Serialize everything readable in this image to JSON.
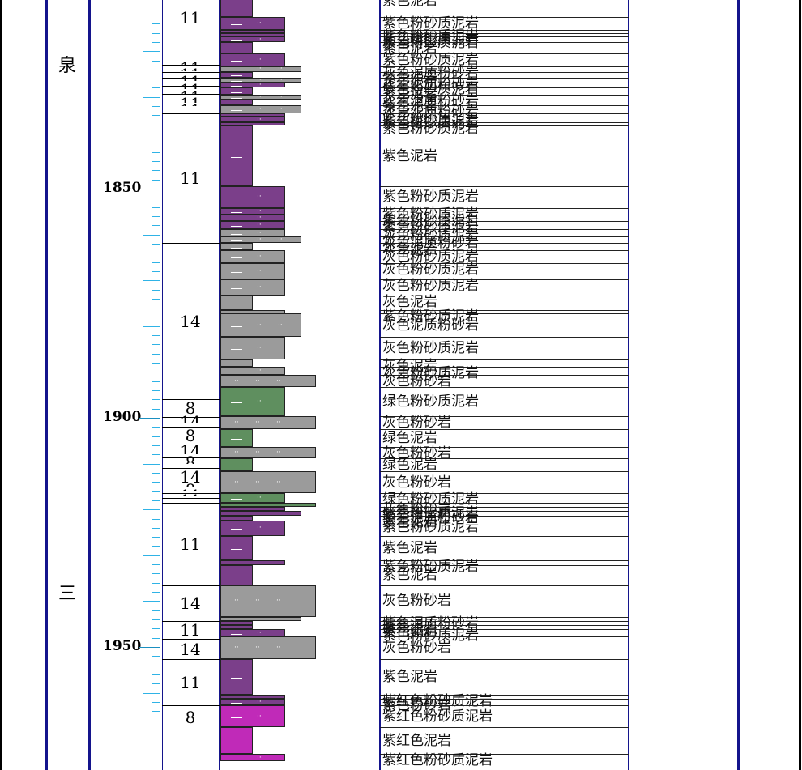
{
  "formation": {
    "top_char": "泉",
    "bottom_char": "三"
  },
  "depth_labels": [
    "1850",
    "1900",
    "1950"
  ],
  "depth_axis": {
    "min": 1800,
    "max": 1968,
    "major_step": 50,
    "minor_step": 2
  },
  "grain_groups": [
    {
      "value": "11",
      "top": 1802.6,
      "bottom": 1822.9
    },
    {
      "value": "11",
      "top": 1822.9,
      "bottom": 1824.5
    },
    {
      "value": "11",
      "top": 1824.5,
      "bottom": 1825.8
    },
    {
      "value": "11",
      "top": 1825.8,
      "bottom": 1827.6
    },
    {
      "value": "11",
      "top": 1827.6,
      "bottom": 1829.3
    },
    {
      "value": "11",
      "top": 1829.3,
      "bottom": 1830.6
    },
    {
      "value": "11",
      "top": 1830.6,
      "bottom": 1832.4
    },
    {
      "value": "11",
      "top": 1832.4,
      "bottom": 1833.5
    },
    {
      "value": "11",
      "top": 1833.5,
      "bottom": 1861.8
    },
    {
      "value": "14",
      "top": 1861.8,
      "bottom": 1896.0
    },
    {
      "value": "8",
      "top": 1896.0,
      "bottom": 1899.8
    },
    {
      "value": "14",
      "top": 1899.8,
      "bottom": 1902.0
    },
    {
      "value": "8",
      "top": 1902.0,
      "bottom": 1905.9
    },
    {
      "value": "14",
      "top": 1905.9,
      "bottom": 1908.6
    },
    {
      "value": "8",
      "top": 1908.6,
      "bottom": 1910.9
    },
    {
      "value": "14",
      "top": 1910.9,
      "bottom": 1915.0
    },
    {
      "value": "8",
      "top": 1915.0,
      "bottom": 1916.5
    },
    {
      "value": "11",
      "top": 1916.5,
      "bottom": 1917.5
    },
    {
      "value": "11",
      "top": 1917.5,
      "bottom": 1918.6
    },
    {
      "value": "11",
      "top": 1918.6,
      "bottom": 1936.5
    },
    {
      "value": "14",
      "top": 1936.5,
      "bottom": 1944.4
    },
    {
      "value": "11",
      "top": 1944.4,
      "bottom": 1948.2
    },
    {
      "value": "14",
      "top": 1948.2,
      "bottom": 1952.7
    },
    {
      "value": "11",
      "top": 1952.7,
      "bottom": 1962.8
    },
    {
      "value": "8",
      "top": 1962.8,
      "bottom": 1968.0
    }
  ],
  "beds": [
    {
      "top": 1800.0,
      "bottom": 1801.0,
      "color": "#7b3f8a",
      "w": 80,
      "pat": "silt",
      "label": "紫色粉砂质泥岩"
    },
    {
      "top": 1801.0,
      "bottom": 1805.0,
      "color": "#7b3f8a",
      "w": 100,
      "pat": "muddy",
      "label": "紫色泥质粉砂岩"
    },
    {
      "top": 1805.0,
      "bottom": 1805.6,
      "color": "#7b3f8a",
      "w": 118,
      "pat": "sand",
      "label": "紫色粉砂岩"
    },
    {
      "top": 1805.6,
      "bottom": 1812.5,
      "color": "#7b3f8a",
      "w": 40,
      "pat": "mud",
      "label": "紫色泥岩"
    },
    {
      "top": 1812.5,
      "bottom": 1815.3,
      "color": "#7b3f8a",
      "w": 80,
      "pat": "silt",
      "label": "紫色粉砂质泥岩"
    },
    {
      "top": 1815.3,
      "bottom": 1816.0,
      "color": "#7b3f8a",
      "w": 80,
      "pat": "silt",
      "label": "紫色粉砂质泥岩"
    },
    {
      "top": 1816.0,
      "bottom": 1816.8,
      "color": "#7b3f8a",
      "w": 80,
      "pat": "silt",
      "label": "紫色粉砂质泥岩"
    },
    {
      "top": 1816.8,
      "bottom": 1818.1,
      "color": "#7b3f8a",
      "w": 80,
      "pat": "silt",
      "label": "紫色粉砂质泥岩"
    },
    {
      "top": 1818.1,
      "bottom": 1820.5,
      "color": "#7b3f8a",
      "w": 40,
      "pat": "mud",
      "label": "紫色泥岩"
    },
    {
      "top": 1820.5,
      "bottom": 1823.3,
      "color": "#7b3f8a",
      "w": 80,
      "pat": "silt",
      "label": "紫色粉砂质泥岩"
    },
    {
      "top": 1823.3,
      "bottom": 1824.5,
      "color": "#9b9b9b",
      "w": 100,
      "pat": "muddy",
      "label": "灰色泥质粉砂岩"
    },
    {
      "top": 1824.5,
      "bottom": 1825.8,
      "color": "#7b3f8a",
      "w": 40,
      "pat": "mud",
      "label": "紫色泥岩"
    },
    {
      "top": 1825.8,
      "bottom": 1826.9,
      "color": "#9b9b9b",
      "w": 100,
      "pat": "muddy",
      "label": "灰色泥质粉砂岩"
    },
    {
      "top": 1826.9,
      "bottom": 1828.0,
      "color": "#7b3f8a",
      "w": 80,
      "pat": "silt",
      "label": "紫色粉砂质泥岩"
    },
    {
      "top": 1828.0,
      "bottom": 1829.5,
      "color": "#7b3f8a",
      "w": 40,
      "pat": "mud",
      "label": "紫色泥岩"
    },
    {
      "top": 1829.5,
      "bottom": 1830.6,
      "color": "#9b9b9b",
      "w": 100,
      "pat": "muddy",
      "label": "灰色泥质粉砂岩"
    },
    {
      "top": 1830.6,
      "bottom": 1831.8,
      "color": "#7b3f8a",
      "w": 40,
      "pat": "mud",
      "label": "紫色泥岩"
    },
    {
      "top": 1831.8,
      "bottom": 1833.5,
      "color": "#9b9b9b",
      "w": 100,
      "pat": "muddy",
      "label": "灰色泥质粉砂岩"
    },
    {
      "top": 1833.5,
      "bottom": 1834.3,
      "color": "#7b3f8a",
      "w": 80,
      "pat": "silt",
      "label": "紫色粉砂质泥岩"
    },
    {
      "top": 1834.3,
      "bottom": 1835.5,
      "color": "#7b3f8a",
      "w": 80,
      "pat": "silt",
      "label": "紫色粉砂质泥岩"
    },
    {
      "top": 1835.5,
      "bottom": 1836.2,
      "color": "#7b3f8a",
      "w": 80,
      "pat": "silt",
      "label": "紫色粉砂质泥岩"
    },
    {
      "top": 1836.2,
      "bottom": 1849.5,
      "color": "#7b3f8a",
      "w": 40,
      "pat": "mud",
      "label": "紫色泥岩"
    },
    {
      "top": 1849.5,
      "bottom": 1854.2,
      "color": "#7b3f8a",
      "w": 80,
      "pat": "silt",
      "label": "紫色粉砂质泥岩"
    },
    {
      "top": 1854.2,
      "bottom": 1855.6,
      "color": "#7b3f8a",
      "w": 80,
      "pat": "silt",
      "label": "紫色粉砂质泥岩"
    },
    {
      "top": 1855.6,
      "bottom": 1857.0,
      "color": "#7b3f8a",
      "w": 80,
      "pat": "silt",
      "label": "紫色粉砂质泥岩"
    },
    {
      "top": 1857.0,
      "bottom": 1858.8,
      "color": "#7b3f8a",
      "w": 80,
      "pat": "silt",
      "label": "紫色粉砂质泥岩"
    },
    {
      "top": 1858.8,
      "bottom": 1860.5,
      "color": "#9b9b9b",
      "w": 80,
      "pat": "silt",
      "label": "灰色粉砂质泥岩"
    },
    {
      "top": 1860.5,
      "bottom": 1861.8,
      "color": "#9b9b9b",
      "w": 100,
      "pat": "muddy",
      "label": "灰色泥质粉砂岩"
    },
    {
      "top": 1861.8,
      "bottom": 1863.5,
      "color": "#9b9b9b",
      "w": 40,
      "pat": "mud",
      "label": "灰色泥岩"
    },
    {
      "top": 1863.5,
      "bottom": 1866.3,
      "color": "#9b9b9b",
      "w": 80,
      "pat": "silt",
      "label": "灰色粉砂质泥岩"
    },
    {
      "top": 1866.3,
      "bottom": 1869.8,
      "color": "#9b9b9b",
      "w": 80,
      "pat": "silt",
      "label": "灰色粉砂质泥岩"
    },
    {
      "top": 1869.8,
      "bottom": 1873.3,
      "color": "#9b9b9b",
      "w": 80,
      "pat": "silt",
      "label": "灰色粉砂质泥岩"
    },
    {
      "top": 1873.3,
      "bottom": 1876.5,
      "color": "#9b9b9b",
      "w": 40,
      "pat": "mud",
      "label": "灰色泥岩"
    },
    {
      "top": 1876.5,
      "bottom": 1877.2,
      "color": "#9b9b9b",
      "w": 80,
      "pat": "silt",
      "label": "紫色粉砂质泥岩"
    },
    {
      "top": 1877.2,
      "bottom": 1882.4,
      "color": "#9b9b9b",
      "w": 100,
      "pat": "muddy",
      "label": "灰色泥质粉砂岩"
    },
    {
      "top": 1882.4,
      "bottom": 1887.2,
      "color": "#9b9b9b",
      "w": 80,
      "pat": "silt",
      "label": "灰色粉砂质泥岩"
    },
    {
      "top": 1887.2,
      "bottom": 1888.8,
      "color": "#9b9b9b",
      "w": 40,
      "pat": "mud",
      "label": "灰色泥岩"
    },
    {
      "top": 1888.8,
      "bottom": 1890.7,
      "color": "#9b9b9b",
      "w": 80,
      "pat": "silt",
      "label": "灰色粉砂质泥岩"
    },
    {
      "top": 1890.7,
      "bottom": 1893.3,
      "color": "#9b9b9b",
      "w": 118,
      "pat": "sand",
      "label": "灰色粉砂岩"
    },
    {
      "top": 1893.3,
      "bottom": 1899.6,
      "color": "#5f8f5f",
      "w": 80,
      "pat": "silt",
      "label": "绿色粉砂质泥岩"
    },
    {
      "top": 1899.6,
      "bottom": 1902.5,
      "color": "#9b9b9b",
      "w": 118,
      "pat": "sand",
      "label": "灰色粉砂岩"
    },
    {
      "top": 1902.5,
      "bottom": 1906.3,
      "color": "#5f8f5f",
      "w": 40,
      "pat": "mud",
      "label": "绿色泥岩"
    },
    {
      "top": 1906.3,
      "bottom": 1908.8,
      "color": "#9b9b9b",
      "w": 118,
      "pat": "sand",
      "label": "灰色粉砂岩"
    },
    {
      "top": 1908.8,
      "bottom": 1911.7,
      "color": "#5f8f5f",
      "w": 40,
      "pat": "mud",
      "label": "绿色泥岩"
    },
    {
      "top": 1911.7,
      "bottom": 1916.5,
      "color": "#9b9b9b",
      "w": 118,
      "pat": "sand",
      "label": "灰色粉砂岩"
    },
    {
      "top": 1916.5,
      "bottom": 1918.6,
      "color": "#5f8f5f",
      "w": 80,
      "pat": "silt",
      "label": "绿色粉砂质泥岩"
    },
    {
      "top": 1918.6,
      "bottom": 1919.4,
      "color": "#5f8f5f",
      "w": 118,
      "pat": "sand",
      "label": "灰色粉砂岩"
    },
    {
      "top": 1919.4,
      "bottom": 1920.4,
      "color": "#7b3f8a",
      "w": 80,
      "pat": "silt",
      "label": "紫色粉砂质泥岩"
    },
    {
      "top": 1920.4,
      "bottom": 1921.4,
      "color": "#7b3f8a",
      "w": 100,
      "pat": "muddy",
      "label": "紫色泥质粉砂岩"
    },
    {
      "top": 1921.4,
      "bottom": 1922.4,
      "color": "#7b3f8a",
      "w": 40,
      "pat": "mud",
      "label": "紫色泥岩"
    },
    {
      "top": 1922.4,
      "bottom": 1925.8,
      "color": "#7b3f8a",
      "w": 80,
      "pat": "silt",
      "label": "紫色粉砂质泥岩"
    },
    {
      "top": 1925.8,
      "bottom": 1931.1,
      "color": "#7b3f8a",
      "w": 40,
      "pat": "mud",
      "label": "紫色泥岩"
    },
    {
      "top": 1931.1,
      "bottom": 1932.1,
      "color": "#7b3f8a",
      "w": 80,
      "pat": "silt",
      "label": "紫色粉砂质泥岩"
    },
    {
      "top": 1932.1,
      "bottom": 1936.5,
      "color": "#7b3f8a",
      "w": 40,
      "pat": "mud",
      "label": "紫色泥岩"
    },
    {
      "top": 1936.5,
      "bottom": 1943.4,
      "color": "#9b9b9b",
      "w": 118,
      "pat": "sand",
      "label": "灰色粉砂岩"
    },
    {
      "top": 1943.4,
      "bottom": 1944.4,
      "color": "#9b9b9b",
      "w": 100,
      "pat": "muddy",
      "label": "紫色泥质粉砂岩"
    },
    {
      "top": 1944.4,
      "bottom": 1945.3,
      "color": "#7b3f8a",
      "w": 40,
      "pat": "mud",
      "label": "紫色泥岩"
    },
    {
      "top": 1945.3,
      "bottom": 1946.2,
      "color": "#7b3f8a",
      "w": 40,
      "pat": "mud",
      "label": "紫色泥岩"
    },
    {
      "top": 1946.2,
      "bottom": 1947.7,
      "color": "#7b3f8a",
      "w": 80,
      "pat": "silt",
      "label": "紫色粉砂质泥岩"
    },
    {
      "top": 1947.7,
      "bottom": 1952.7,
      "color": "#9b9b9b",
      "w": 118,
      "pat": "sand",
      "label": "灰色粉砂岩"
    },
    {
      "top": 1952.7,
      "bottom": 1960.5,
      "color": "#7b3f8a",
      "w": 40,
      "pat": "mud",
      "label": "紫色泥岩"
    },
    {
      "top": 1960.5,
      "bottom": 1961.3,
      "color": "#7b3f8a",
      "w": 80,
      "pat": "silt",
      "label": "紫红色粉砂质泥岩"
    },
    {
      "top": 1961.3,
      "bottom": 1962.8,
      "color": "#7b3f8a",
      "w": 80,
      "pat": "silt",
      "label": "紫色粉砂岩"
    },
    {
      "top": 1962.8,
      "bottom": 1967.5,
      "color": "#c02ab8",
      "w": 80,
      "pat": "silt",
      "label": "紫红色粉砂质泥岩"
    },
    {
      "top": 1967.5,
      "bottom": 1973.4,
      "color": "#c02ab8",
      "w": 40,
      "pat": "mud",
      "label": "紫红色泥岩"
    },
    {
      "top": 1973.4,
      "bottom": 1975.0,
      "color": "#c02ab8",
      "w": 80,
      "pat": "silt",
      "label": "紫红色粉砂质泥岩"
    }
  ],
  "colors": {
    "frame": "#14148c",
    "tick": "#2fb3e6"
  }
}
